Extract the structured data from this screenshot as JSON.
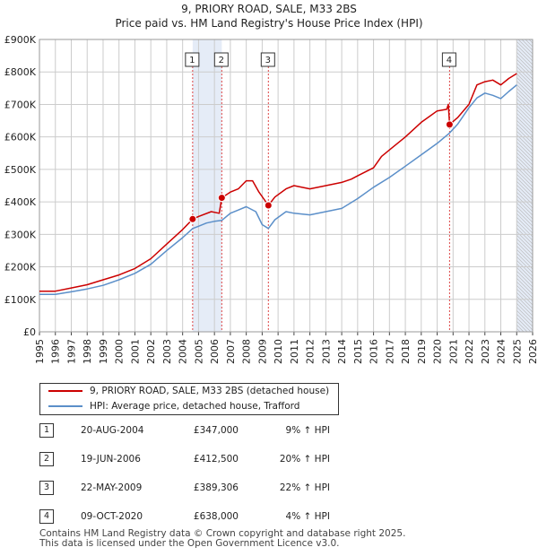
{
  "header": {
    "title": "9, PRIORY ROAD, SALE, M33 2BS",
    "subtitle": "Price paid vs. HM Land Registry's House Price Index (HPI)"
  },
  "legend": {
    "property_label": "9, PRIORY ROAD, SALE, M33 2BS (detached house)",
    "hpi_label": "HPI: Average price, detached house, Trafford"
  },
  "sales": [
    {
      "num": "1",
      "date": "20-AUG-2004",
      "price": "£347,000",
      "hpi": "9% ↑ HPI"
    },
    {
      "num": "2",
      "date": "19-JUN-2006",
      "price": "£412,500",
      "hpi": "20% ↑ HPI"
    },
    {
      "num": "3",
      "date": "22-MAY-2009",
      "price": "£389,306",
      "hpi": "22% ↑ HPI"
    },
    {
      "num": "4",
      "date": "09-OCT-2020",
      "price": "£638,000",
      "hpi": "4% ↑ HPI"
    }
  ],
  "footer": {
    "line1": "Contains HM Land Registry data © Crown copyright and database right 2025.",
    "line2": "This data is licensed under the Open Government Licence v3.0."
  },
  "colors": {
    "property": "#cc0000",
    "hpi": "#5b8fc9",
    "shade": "#dfe7f5",
    "grid": "#cccccc",
    "marker_line": "#dd4444"
  },
  "chart_data": {
    "type": "line",
    "title": "9, PRIORY ROAD, SALE, M33 2BS",
    "subtitle": "Price paid vs. HM Land Registry's House Price Index (HPI)",
    "xlabel": "",
    "ylabel": "",
    "xlim": [
      1995,
      2026
    ],
    "ylim": [
      0,
      900000
    ],
    "x_ticks": [
      1995,
      1996,
      1997,
      1998,
      1999,
      2000,
      2001,
      2002,
      2003,
      2004,
      2005,
      2006,
      2007,
      2008,
      2009,
      2010,
      2011,
      2012,
      2013,
      2014,
      2015,
      2016,
      2017,
      2018,
      2019,
      2020,
      2021,
      2022,
      2023,
      2024,
      2025,
      2026
    ],
    "y_ticks": [
      {
        "value": 0,
        "label": "£0"
      },
      {
        "value": 100000,
        "label": "£100K"
      },
      {
        "value": 200000,
        "label": "£200K"
      },
      {
        "value": 300000,
        "label": "£300K"
      },
      {
        "value": 400000,
        "label": "£400K"
      },
      {
        "value": 500000,
        "label": "£500K"
      },
      {
        "value": 600000,
        "label": "£600K"
      },
      {
        "value": 700000,
        "label": "£700K"
      },
      {
        "value": 800000,
        "label": "£800K"
      },
      {
        "value": 900000,
        "label": "£900K"
      }
    ],
    "grid": true,
    "shaded_ranges": [
      [
        2004.63,
        2006.46
      ],
      [
        2025.0,
        2026.0
      ]
    ],
    "series": [
      {
        "name": "9, PRIORY ROAD, SALE, M33 2BS (detached house)",
        "color": "#cc0000",
        "points": [
          [
            1995.0,
            125000
          ],
          [
            1996.0,
            125000
          ],
          [
            1997.0,
            135000
          ],
          [
            1998.0,
            145000
          ],
          [
            1999.0,
            160000
          ],
          [
            2000.0,
            175000
          ],
          [
            2001.0,
            195000
          ],
          [
            2002.0,
            225000
          ],
          [
            2003.0,
            270000
          ],
          [
            2004.0,
            315000
          ],
          [
            2004.63,
            347000
          ],
          [
            2005.0,
            355000
          ],
          [
            2005.8,
            370000
          ],
          [
            2006.3,
            365000
          ],
          [
            2006.46,
            412500
          ],
          [
            2007.0,
            430000
          ],
          [
            2007.5,
            440000
          ],
          [
            2008.0,
            465000
          ],
          [
            2008.4,
            465000
          ],
          [
            2008.8,
            430000
          ],
          [
            2009.39,
            389306
          ],
          [
            2009.8,
            415000
          ],
          [
            2010.5,
            440000
          ],
          [
            2011.0,
            450000
          ],
          [
            2012.0,
            440000
          ],
          [
            2013.0,
            450000
          ],
          [
            2014.0,
            460000
          ],
          [
            2014.6,
            470000
          ],
          [
            2015.0,
            480000
          ],
          [
            2016.0,
            505000
          ],
          [
            2016.5,
            540000
          ],
          [
            2017.0,
            560000
          ],
          [
            2018.0,
            600000
          ],
          [
            2019.0,
            645000
          ],
          [
            2020.0,
            680000
          ],
          [
            2020.6,
            685000
          ],
          [
            2020.7,
            700000
          ],
          [
            2020.78,
            638000
          ],
          [
            2021.3,
            660000
          ],
          [
            2022.0,
            700000
          ],
          [
            2022.5,
            760000
          ],
          [
            2023.0,
            770000
          ],
          [
            2023.5,
            775000
          ],
          [
            2024.0,
            760000
          ],
          [
            2024.5,
            780000
          ],
          [
            2025.0,
            795000
          ]
        ]
      },
      {
        "name": "HPI: Average price, detached house, Trafford",
        "color": "#5b8fc9",
        "points": [
          [
            1995.0,
            115000
          ],
          [
            1996.0,
            115000
          ],
          [
            1997.0,
            123000
          ],
          [
            1998.0,
            132000
          ],
          [
            1999.0,
            143000
          ],
          [
            2000.0,
            160000
          ],
          [
            2001.0,
            180000
          ],
          [
            2002.0,
            208000
          ],
          [
            2003.0,
            250000
          ],
          [
            2004.0,
            290000
          ],
          [
            2004.63,
            318000
          ],
          [
            2005.0,
            325000
          ],
          [
            2005.5,
            335000
          ],
          [
            2006.0,
            340000
          ],
          [
            2006.46,
            343000
          ],
          [
            2007.0,
            365000
          ],
          [
            2007.5,
            375000
          ],
          [
            2008.0,
            385000
          ],
          [
            2008.6,
            370000
          ],
          [
            2009.0,
            330000
          ],
          [
            2009.39,
            318000
          ],
          [
            2009.8,
            345000
          ],
          [
            2010.5,
            370000
          ],
          [
            2011.0,
            365000
          ],
          [
            2012.0,
            360000
          ],
          [
            2013.0,
            370000
          ],
          [
            2014.0,
            380000
          ],
          [
            2015.0,
            410000
          ],
          [
            2016.0,
            445000
          ],
          [
            2017.0,
            475000
          ],
          [
            2018.0,
            510000
          ],
          [
            2019.0,
            545000
          ],
          [
            2020.0,
            580000
          ],
          [
            2020.78,
            612000
          ],
          [
            2021.3,
            640000
          ],
          [
            2022.0,
            690000
          ],
          [
            2022.5,
            720000
          ],
          [
            2023.0,
            735000
          ],
          [
            2023.5,
            728000
          ],
          [
            2024.0,
            718000
          ],
          [
            2024.5,
            740000
          ],
          [
            2025.0,
            760000
          ]
        ]
      }
    ],
    "sales_markers": [
      {
        "label": "1",
        "x": 2004.63,
        "y": 347000
      },
      {
        "label": "2",
        "x": 2006.46,
        "y": 412500
      },
      {
        "label": "3",
        "x": 2009.39,
        "y": 389306
      },
      {
        "label": "4",
        "x": 2020.78,
        "y": 638000
      }
    ]
  }
}
